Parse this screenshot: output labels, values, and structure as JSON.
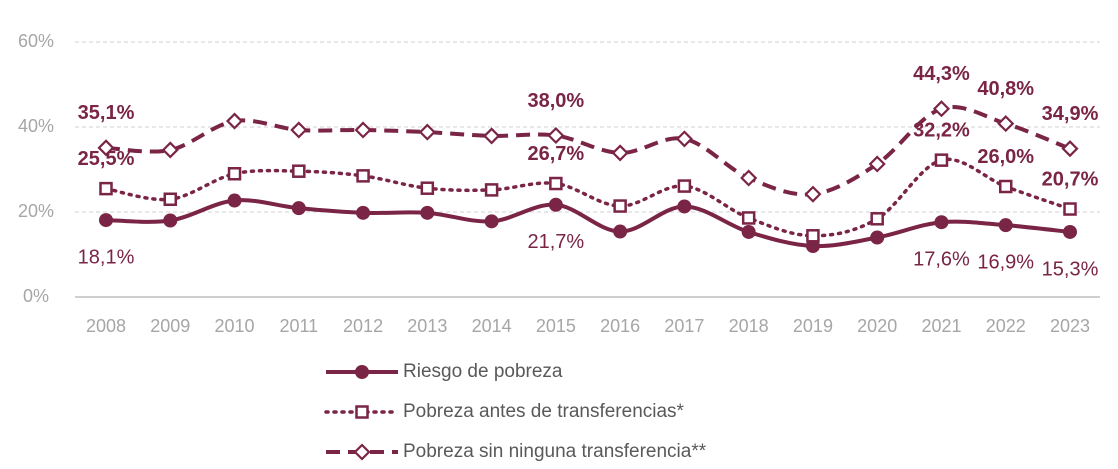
{
  "chart_data": {
    "type": "line",
    "categories": [
      "2008",
      "2009",
      "2010",
      "2011",
      "2012",
      "2013",
      "2014",
      "2015",
      "2016",
      "2017",
      "2018",
      "2019",
      "2020",
      "2021",
      "2022",
      "2023"
    ],
    "ylim": [
      0,
      60
    ],
    "yticks": [
      {
        "value": 0,
        "label": "0%"
      },
      {
        "value": 20,
        "label": "20%"
      },
      {
        "value": 40,
        "label": "40%"
      },
      {
        "value": 60,
        "label": "60%"
      }
    ],
    "grid": true,
    "legend": "bottom",
    "series": [
      {
        "name": "Riesgo de pobreza",
        "color": "#7a2446",
        "line_style": "solid",
        "marker": "circle",
        "label_position": "below",
        "label_weight": "normal",
        "values": [
          18.1,
          18.0,
          22.7,
          20.9,
          19.8,
          19.8,
          17.8,
          21.7,
          15.4,
          21.3,
          15.3,
          12.0,
          14.0,
          17.6,
          16.9,
          15.3
        ],
        "value_labels": [
          "18,1%",
          null,
          null,
          null,
          null,
          null,
          null,
          "21,7%",
          null,
          null,
          null,
          null,
          null,
          "17,6%",
          "16,9%",
          "15,3%"
        ]
      },
      {
        "name": "Pobreza antes de transferencias*",
        "color": "#7a2446",
        "line_style": "dotted",
        "marker": "square",
        "label_position": "above",
        "label_weight": "bold",
        "values": [
          25.5,
          23.0,
          29.0,
          29.6,
          28.5,
          25.6,
          25.2,
          26.7,
          21.4,
          26.1,
          18.6,
          14.4,
          18.4,
          32.2,
          26.0,
          20.7
        ],
        "value_labels": [
          "25,5%",
          null,
          null,
          null,
          null,
          null,
          null,
          "26,7%",
          null,
          null,
          null,
          null,
          null,
          "32,2%",
          "26,0%",
          "20,7%"
        ]
      },
      {
        "name": "Pobreza sin ninguna transferencia**",
        "color": "#7a2446",
        "line_style": "dashed",
        "marker": "diamond",
        "label_position": "above",
        "label_weight": "bold",
        "values": [
          35.1,
          34.6,
          41.4,
          39.3,
          39.3,
          38.8,
          37.9,
          38.0,
          33.9,
          37.2,
          28.0,
          24.2,
          31.3,
          44.3,
          40.8,
          34.9
        ],
        "value_labels": [
          "35,1%",
          null,
          null,
          null,
          null,
          null,
          null,
          "38,0%",
          null,
          null,
          null,
          null,
          null,
          "44,3%",
          "40,8%",
          "34,9%"
        ]
      }
    ]
  }
}
